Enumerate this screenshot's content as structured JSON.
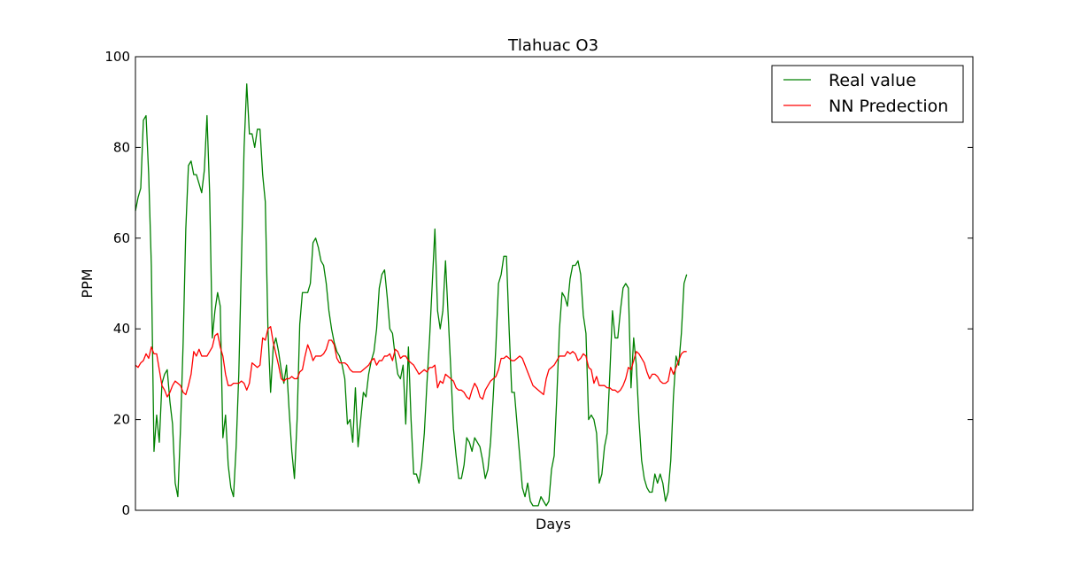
{
  "chart_data": {
    "type": "line",
    "title": "Tlahuac O3",
    "xlabel": "Days",
    "ylabel": "PPM",
    "ylim": [
      0,
      100
    ],
    "xlim": [
      0,
      316
    ],
    "yticks": [
      0,
      20,
      40,
      60,
      80,
      100
    ],
    "grid": false,
    "legend_position": "top-right",
    "series": [
      {
        "name": "Real value",
        "color": "#008000",
        "values": [
          66,
          69,
          71,
          86,
          87,
          74,
          54,
          13,
          21,
          15,
          28,
          30,
          31,
          24,
          19,
          6,
          3,
          18,
          37,
          62,
          76,
          77,
          74,
          74,
          72,
          70,
          75,
          87,
          70,
          38,
          44,
          48,
          45,
          16,
          21,
          10,
          5,
          3,
          14,
          30,
          55,
          80,
          94,
          83,
          83,
          80,
          84,
          84,
          74,
          68,
          40,
          26,
          36,
          38,
          35,
          31,
          28,
          32,
          22,
          13,
          7,
          20,
          41,
          48,
          48,
          48,
          50,
          59,
          60,
          58,
          55,
          54,
          50,
          44,
          40,
          37,
          35,
          34,
          32,
          29,
          19,
          20,
          15,
          27,
          14,
          20,
          26,
          25,
          30,
          33,
          35,
          40,
          49,
          52,
          53,
          47,
          40,
          39,
          34,
          30,
          29,
          32,
          19,
          36,
          20,
          8,
          8,
          6,
          10,
          17,
          28,
          38,
          50,
          62,
          44,
          40,
          44,
          55,
          43,
          31,
          18,
          12,
          7,
          7,
          10,
          16,
          15,
          13,
          16,
          15,
          14,
          11,
          7,
          9,
          15,
          25,
          36,
          50,
          52,
          56,
          56,
          40,
          26,
          26,
          19,
          12,
          5,
          3,
          6,
          2,
          1,
          1,
          1,
          3,
          2,
          1,
          2,
          9,
          12,
          25,
          40,
          48,
          47,
          45,
          51,
          54,
          54,
          55,
          52,
          43,
          39,
          20,
          21,
          20,
          17,
          6,
          8,
          14,
          17,
          30,
          44,
          38,
          38,
          44,
          49,
          50,
          49,
          27,
          38,
          32,
          20,
          11,
          7,
          5,
          4,
          4,
          8,
          6,
          8,
          6,
          2,
          4,
          11,
          25,
          34,
          32,
          39,
          50,
          52
        ]
      },
      {
        "name": "NN Predection",
        "color": "#ff0000",
        "values": [
          32,
          31.5,
          32.5,
          33,
          34.5,
          33.5,
          36,
          34.5,
          34.5,
          31,
          27.5,
          26.5,
          25,
          26,
          27.5,
          28.5,
          28,
          27.5,
          26,
          25.5,
          27.5,
          30,
          35,
          34,
          35.5,
          34,
          34,
          34,
          35,
          36,
          38.5,
          39,
          36,
          34,
          30,
          27.5,
          27.5,
          28,
          28,
          28,
          28.5,
          28,
          26.5,
          28,
          32.5,
          32,
          31.5,
          32,
          38,
          37.5,
          40,
          40.5,
          37,
          34.5,
          32,
          29,
          28.5,
          29,
          29,
          29.5,
          29,
          29,
          30.5,
          31,
          34,
          36.5,
          35,
          33,
          34,
          34,
          34,
          34.5,
          35.5,
          37.5,
          37.5,
          36.5,
          33.5,
          32.5,
          32.5,
          32.5,
          32,
          31,
          30.5,
          30.5,
          30.5,
          30.5,
          31,
          31.5,
          32,
          33,
          33.5,
          32,
          33,
          33,
          34,
          34,
          34.5,
          33,
          35.5,
          35,
          33.5,
          34,
          34,
          33,
          32.5,
          32,
          31,
          30,
          30.5,
          31,
          30.5,
          31.5,
          31.5,
          32,
          27,
          28.5,
          28,
          30,
          29.5,
          29,
          28.5,
          27,
          26.5,
          26.5,
          26,
          25,
          24.5,
          26.5,
          28,
          27,
          25,
          24.5,
          26.5,
          27.5,
          28.5,
          29,
          29.5,
          31,
          33.5,
          33.5,
          34,
          33.5,
          33,
          33,
          33.5,
          34,
          33.5,
          32,
          30.5,
          29,
          27.5,
          27,
          26.5,
          26,
          25.5,
          29,
          31,
          31.5,
          32,
          33,
          34,
          34,
          34,
          35,
          34.5,
          35,
          34.5,
          33,
          33.5,
          34.5,
          34,
          31.5,
          31,
          28,
          29.5,
          27.5,
          27.5,
          27.5,
          27,
          27,
          26.5,
          26.5,
          26,
          26.5,
          27.5,
          29,
          31.5,
          31,
          33,
          35,
          34.5,
          33.5,
          32.5,
          30.5,
          29,
          30,
          30,
          29.5,
          28.5,
          28,
          28,
          28.5,
          31.5,
          30,
          31.5,
          33,
          34.5,
          35,
          35
        ]
      }
    ]
  }
}
